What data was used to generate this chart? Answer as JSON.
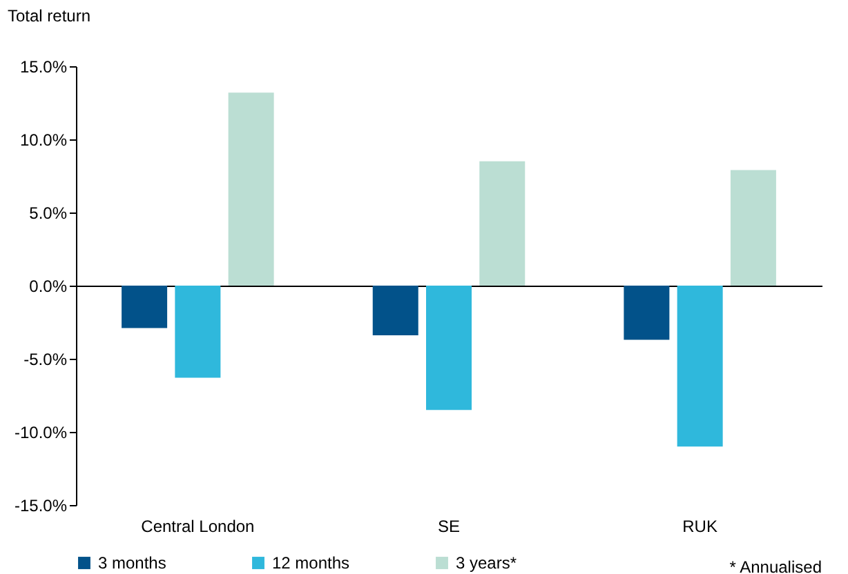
{
  "chart_data": {
    "type": "bar",
    "ylabel": "Total return",
    "categories": [
      "Central London",
      "SE",
      "RUK"
    ],
    "series": [
      {
        "name": "3 months",
        "color": "#02528a",
        "values": [
          -2.9,
          -3.4,
          -3.7
        ]
      },
      {
        "name": "12 months",
        "color": "#2fb8dc",
        "values": [
          -6.3,
          -8.5,
          -11.0
        ]
      },
      {
        "name": "3 years*",
        "color": "#bbded3",
        "values": [
          13.2,
          8.5,
          7.9
        ]
      }
    ],
    "ylim": [
      -15,
      15
    ],
    "yticks": [
      {
        "value": -15,
        "label": "-15.0%"
      },
      {
        "value": -10,
        "label": "-10.0%"
      },
      {
        "value": -5,
        "label": "-5.0%"
      },
      {
        "value": 0,
        "label": "0.0%"
      },
      {
        "value": 5,
        "label": "5.0%"
      },
      {
        "value": 10,
        "label": "10.0%"
      },
      {
        "value": 15,
        "label": "15.0%"
      }
    ],
    "legend": "bottom",
    "annotations": [
      "* Annualised"
    ]
  }
}
